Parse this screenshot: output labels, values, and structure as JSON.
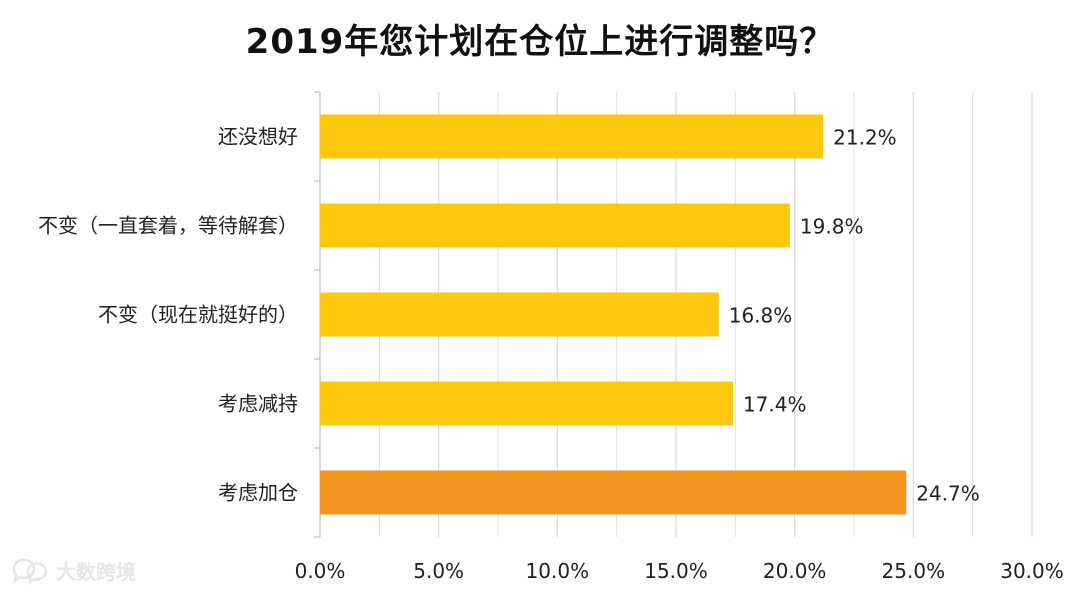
{
  "chart_data": {
    "type": "bar",
    "orientation": "horizontal",
    "title": "2019年您计划在仓位上进行调整吗？",
    "categories": [
      "还没想好",
      "不变（一直套着，等待解套）",
      "不变（现在就挺好的）",
      "考虑减持",
      "考虑加仓"
    ],
    "values": [
      21.2,
      19.8,
      16.8,
      17.4,
      24.7
    ],
    "value_labels": [
      "21.2%",
      "19.8%",
      "16.8%",
      "17.4%",
      "24.7%"
    ],
    "xlim": [
      0,
      30
    ],
    "xticks": [
      0,
      5,
      10,
      15,
      20,
      25,
      30
    ],
    "xtick_labels": [
      "0.0%",
      "5.0%",
      "10.0%",
      "15.0%",
      "20.0%",
      "25.0%",
      "30.0%"
    ],
    "xlabel": "",
    "ylabel": "",
    "grid": true,
    "colors": {
      "default": "#FDC80E",
      "highlight": "#F4941F",
      "highlight_index": 4,
      "grid": "#d9d9d9",
      "axis": "#bfbfbf"
    }
  },
  "watermark": {
    "text": "大数跨境",
    "icon": "chat-bubble-icon"
  }
}
